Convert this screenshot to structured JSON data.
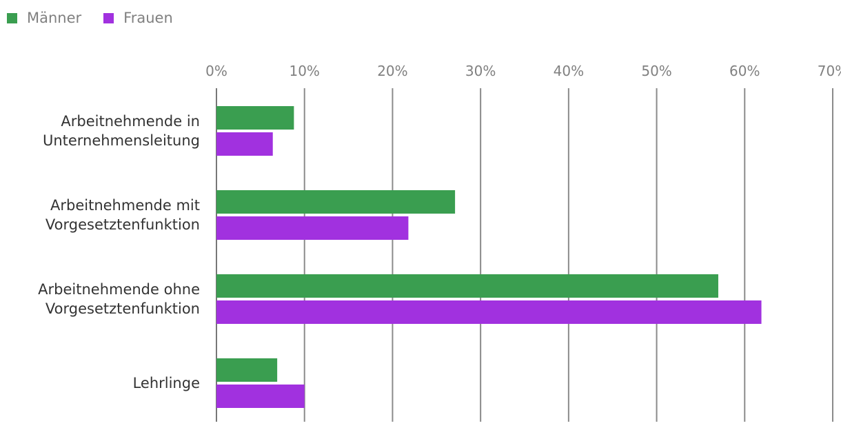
{
  "chart_data": {
    "type": "bar",
    "orientation": "horizontal",
    "categories": [
      [
        "Arbeitnehmende in",
        "Unternehmensleitung"
      ],
      [
        "Arbeitnehmende mit",
        "Vorgesetztenfunktion"
      ],
      [
        "Arbeitnehmende ohne",
        "Vorgesetztenfunktion"
      ],
      [
        "Lehrlinge"
      ]
    ],
    "series": [
      {
        "name": "Männer",
        "color": "#3a9e50",
        "values": [
          8.8,
          27.1,
          57.0,
          6.9
        ]
      },
      {
        "name": "Frauen",
        "color": "#a131df",
        "values": [
          6.4,
          21.8,
          61.9,
          10.0
        ]
      }
    ],
    "xlim": [
      0,
      70
    ],
    "x_ticks": [
      0,
      10,
      20,
      30,
      40,
      50,
      60,
      70
    ],
    "x_tick_labels": [
      "0%",
      "10%",
      "20%",
      "30%",
      "40%",
      "50%",
      "60%",
      "70%"
    ],
    "axis_position": "top",
    "grid": true,
    "legend_position": "top-left",
    "title": "",
    "xlabel": "",
    "ylabel": ""
  }
}
